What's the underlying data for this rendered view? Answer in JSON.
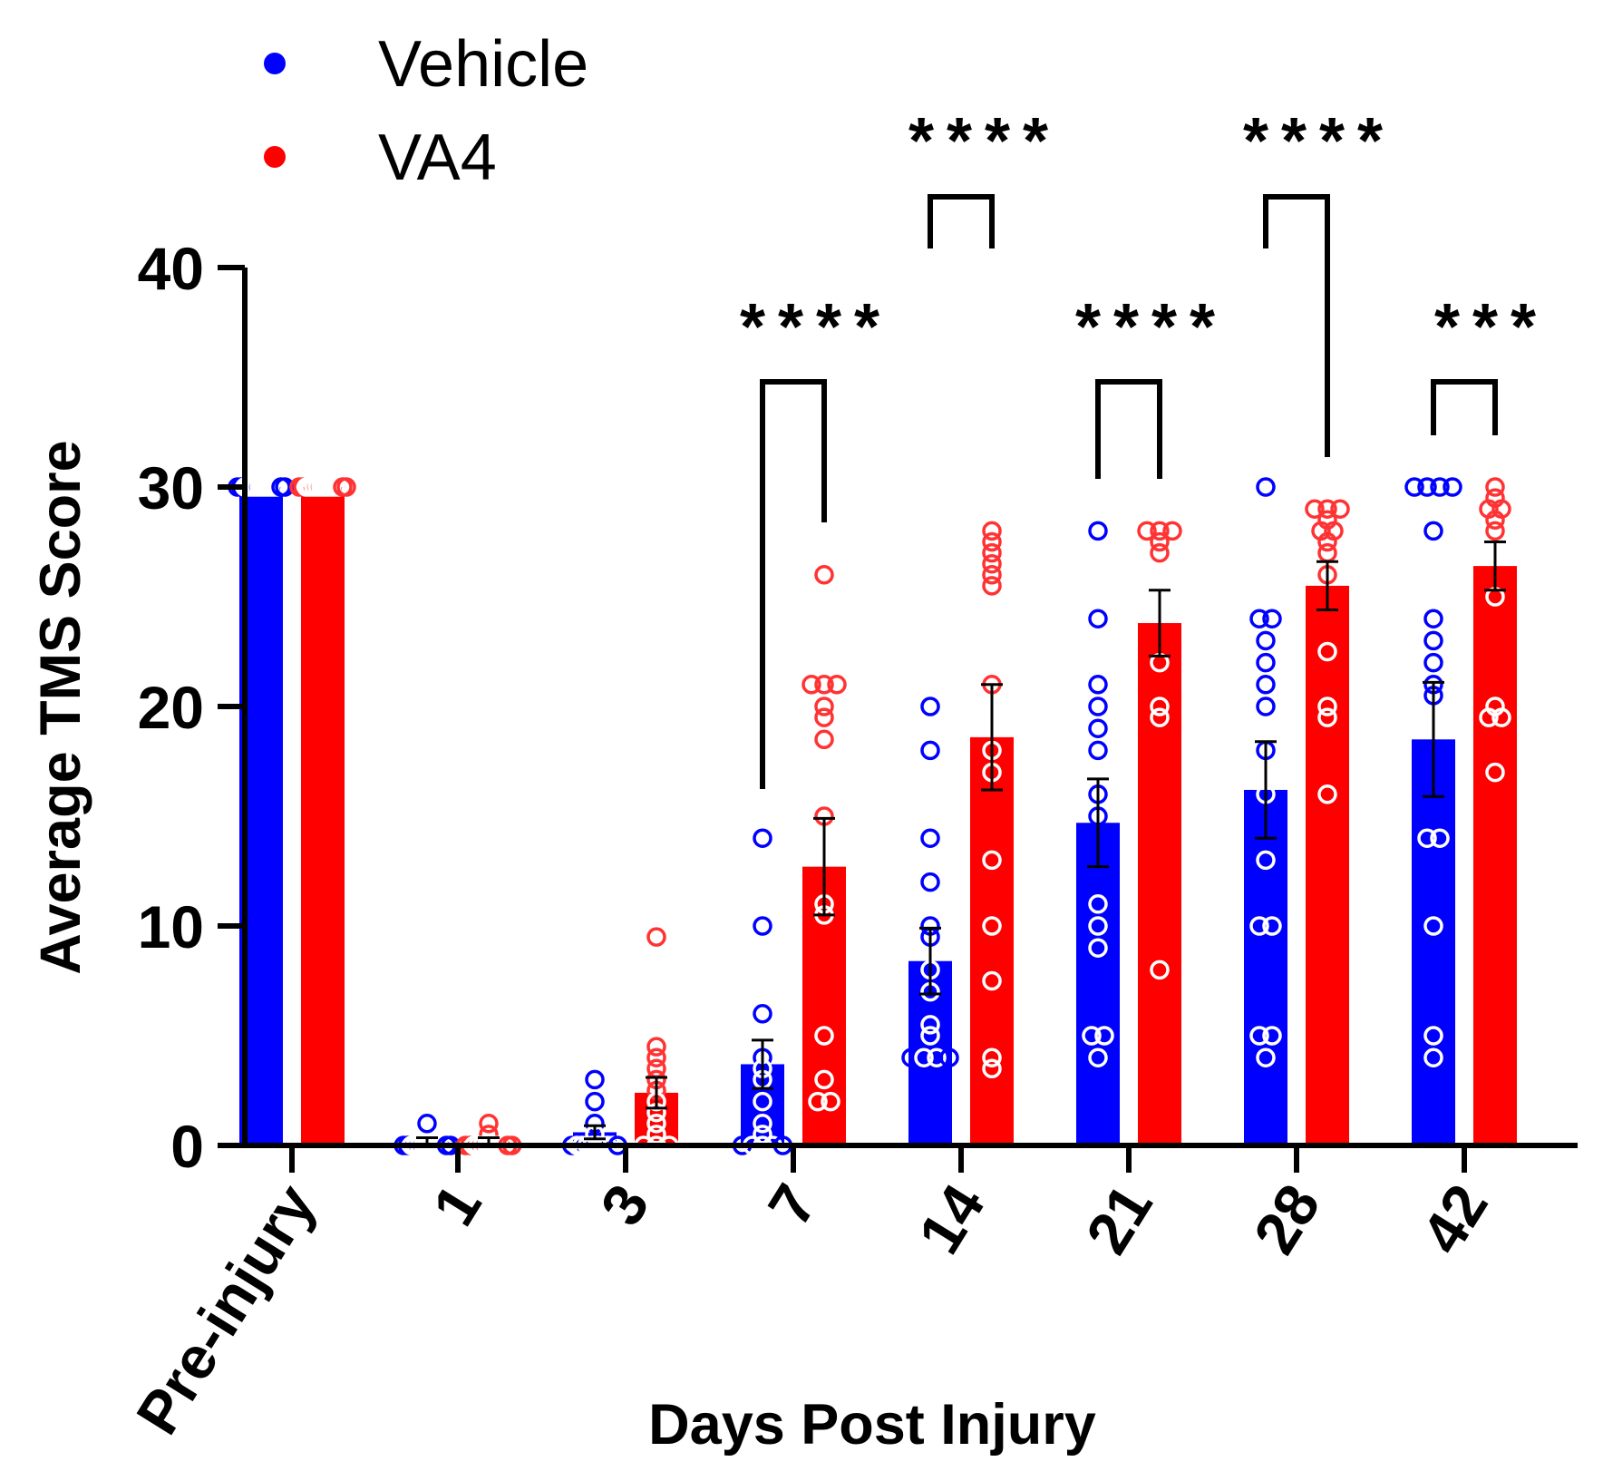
{
  "chart_data": {
    "type": "bar",
    "title": "",
    "xlabel": "Days Post Injury",
    "ylabel": "Average TMS Score",
    "ylim": [
      0,
      40
    ],
    "yticks": [
      0,
      10,
      20,
      30,
      40
    ],
    "categories": [
      "Pre-injury",
      "1",
      "3",
      "7",
      "14",
      "21",
      "28",
      "42"
    ],
    "legend": {
      "placement": "top-left"
    },
    "series": [
      {
        "name": "Vehicle",
        "color": "#0000ff",
        "values": [
          30,
          0.2,
          0.6,
          3.7,
          8.4,
          14.7,
          16.2,
          18.5
        ],
        "errors": [
          0,
          0.15,
          0.3,
          1.1,
          1.5,
          2.0,
          2.2,
          2.6
        ],
        "points": [
          [
            30,
            30,
            30,
            30,
            30,
            30,
            30,
            30,
            30,
            30,
            30,
            30,
            30,
            30
          ],
          [
            1,
            0,
            0,
            0,
            0,
            0,
            0,
            0,
            0,
            0,
            0,
            0,
            0,
            0
          ],
          [
            3,
            2,
            1,
            0.5,
            0,
            0,
            0,
            0,
            0,
            0,
            0,
            0,
            0,
            0
          ],
          [
            14,
            10,
            6,
            4,
            3.5,
            3,
            2,
            1,
            0.5,
            0,
            0,
            0,
            0,
            0
          ],
          [
            20,
            18,
            14,
            12,
            10,
            9.5,
            5.5,
            5,
            4,
            4,
            4,
            4,
            8,
            7
          ],
          [
            28,
            24,
            21,
            20,
            19,
            18,
            16,
            15,
            11,
            10,
            9,
            5,
            5,
            4
          ],
          [
            30,
            24,
            24,
            23,
            22,
            21,
            20,
            18,
            16,
            13,
            10,
            10,
            5,
            5,
            4
          ],
          [
            30,
            30,
            30,
            30,
            28,
            24,
            23,
            22,
            21,
            20.5,
            14,
            14,
            10,
            5,
            4
          ]
        ]
      },
      {
        "name": "VA4",
        "color": "#ff0000",
        "values": [
          30,
          0.2,
          2.4,
          12.7,
          18.6,
          23.8,
          25.5,
          26.4
        ],
        "errors": [
          0,
          0.15,
          0.7,
          2.2,
          2.4,
          1.5,
          1.1,
          1.1
        ],
        "points": [
          [
            30,
            30,
            30,
            30,
            30,
            30,
            30,
            30,
            30,
            30,
            30,
            30,
            30,
            30
          ],
          [
            1,
            0.5,
            0,
            0,
            0,
            0,
            0,
            0,
            0,
            0,
            0,
            0,
            0,
            0
          ],
          [
            9.5,
            4.5,
            4,
            3.5,
            3,
            2.5,
            2,
            1.5,
            1,
            0.5,
            0,
            0,
            0
          ],
          [
            26,
            21,
            21,
            21,
            20,
            19.5,
            18.5,
            15,
            11,
            10.5,
            5,
            3,
            2,
            2
          ],
          [
            28,
            27.5,
            27,
            26.5,
            26,
            25.5,
            21,
            18,
            17,
            13,
            10,
            7.5,
            4,
            3.5
          ],
          [
            28,
            28,
            28,
            27.5,
            27,
            22,
            20,
            19.5,
            8
          ],
          [
            29,
            29,
            29,
            28.5,
            28,
            28,
            27.5,
            27,
            26,
            22.5,
            20,
            19.5,
            16
          ],
          [
            30,
            29.5,
            29,
            29,
            28.5,
            28,
            25,
            20,
            19.5,
            19.5,
            17
          ]
        ]
      }
    ],
    "significance": [
      {
        "category": "7",
        "label": "****"
      },
      {
        "category": "14",
        "label": "****"
      },
      {
        "category": "21",
        "label": "****"
      },
      {
        "category": "28",
        "label": "****"
      },
      {
        "category": "42",
        "label": "***"
      }
    ]
  }
}
